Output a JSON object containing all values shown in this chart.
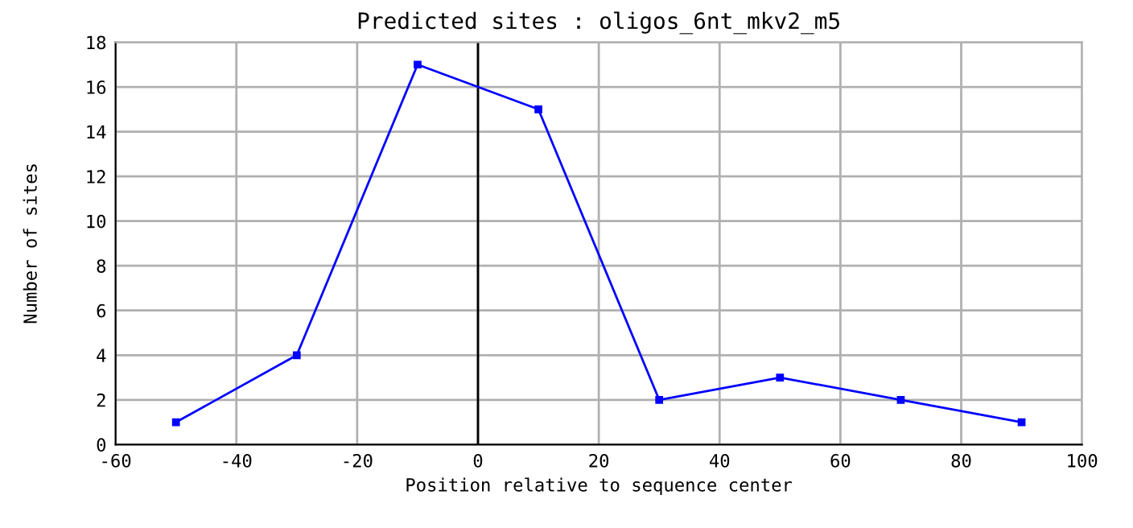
{
  "chart_data": {
    "type": "line",
    "title": "Predicted sites : oligos_6nt_mkv2_m5",
    "xlabel": "Position relative to sequence center",
    "ylabel": "Number of sites",
    "x": [
      -50,
      -30,
      -10,
      10,
      30,
      50,
      70,
      90
    ],
    "series": [
      {
        "color": "#0000ff",
        "values": [
          1,
          4,
          17,
          15,
          2,
          3,
          2,
          1
        ]
      }
    ],
    "xlim": [
      -60,
      100
    ],
    "xticks": [
      -60,
      -40,
      -20,
      0,
      20,
      40,
      60,
      80,
      100
    ],
    "ylim": [
      0,
      18
    ],
    "yticks": [
      0,
      2,
      4,
      6,
      8,
      10,
      12,
      14,
      16,
      18
    ],
    "grid": true,
    "marker": "square",
    "line_style": "solid",
    "ref_lines": [
      {
        "axis": "x",
        "value": 0,
        "color": "#000000"
      }
    ]
  }
}
